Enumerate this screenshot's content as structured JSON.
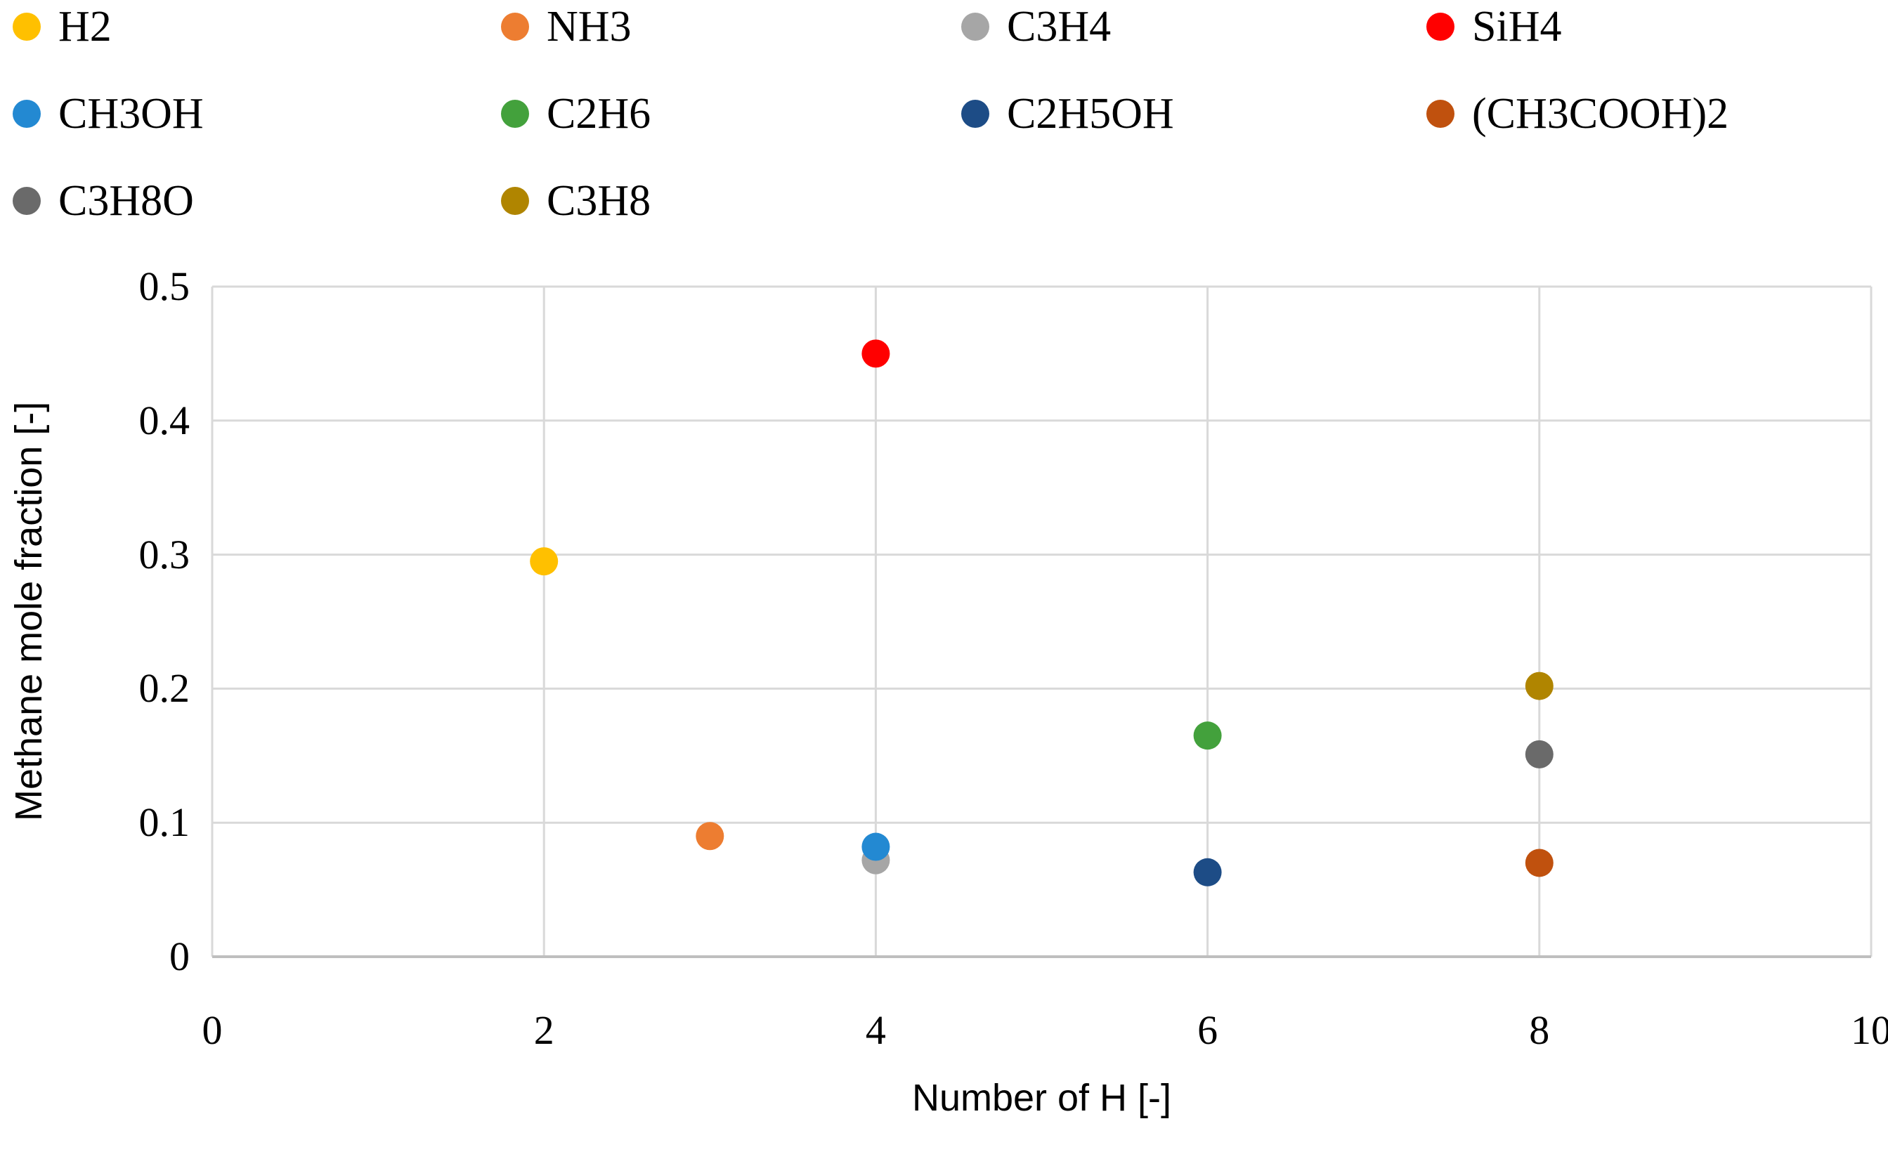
{
  "chart_data": {
    "type": "scatter",
    "title": "",
    "xlabel": "Number of H [-]",
    "ylabel": "Methane mole fraction [-]",
    "xlim": [
      0,
      10
    ],
    "ylim": [
      0,
      0.5
    ],
    "xticks": [
      0,
      2,
      4,
      6,
      8,
      10
    ],
    "xtick_labels": [
      "0",
      "2",
      "4",
      "6",
      "8",
      "10"
    ],
    "yticks": [
      0,
      0.1,
      0.2,
      0.3,
      0.4,
      0.5
    ],
    "ytick_labels": [
      "0",
      "0.1",
      "0.2",
      "0.3",
      "0.4",
      "0.5"
    ],
    "grid": true,
    "legend_position": "top-left",
    "grid_color": "#D9D9D9",
    "axis_line_color": "#BFBFBF",
    "marker_radius_px": 20,
    "series": [
      {
        "name": "H2",
        "color": "#FFC000",
        "points": [
          [
            2,
            0.295
          ]
        ]
      },
      {
        "name": "NH3",
        "color": "#ED7D31",
        "points": [
          [
            3,
            0.09
          ]
        ]
      },
      {
        "name": "C3H4",
        "color": "#A6A6A6",
        "points": [
          [
            4,
            0.072
          ]
        ]
      },
      {
        "name": "SiH4",
        "color": "#FF0000",
        "points": [
          [
            4,
            0.45
          ]
        ]
      },
      {
        "name": "CH3OH",
        "color": "#2389D2",
        "points": [
          [
            4,
            0.082
          ]
        ]
      },
      {
        "name": "C2H6",
        "color": "#43A13C",
        "points": [
          [
            6,
            0.165
          ]
        ]
      },
      {
        "name": "C2H5OH",
        "color": "#1D4C86",
        "points": [
          [
            6,
            0.063
          ]
        ]
      },
      {
        "name": "(CH3COOH)2",
        "color": "#C0510E",
        "points": [
          [
            8,
            0.07
          ]
        ]
      },
      {
        "name": "C3H8O",
        "color": "#6A6A6A",
        "points": [
          [
            8,
            0.151
          ]
        ]
      },
      {
        "name": "C3H8",
        "color": "#B08500",
        "points": [
          [
            8,
            0.202
          ]
        ]
      }
    ]
  }
}
